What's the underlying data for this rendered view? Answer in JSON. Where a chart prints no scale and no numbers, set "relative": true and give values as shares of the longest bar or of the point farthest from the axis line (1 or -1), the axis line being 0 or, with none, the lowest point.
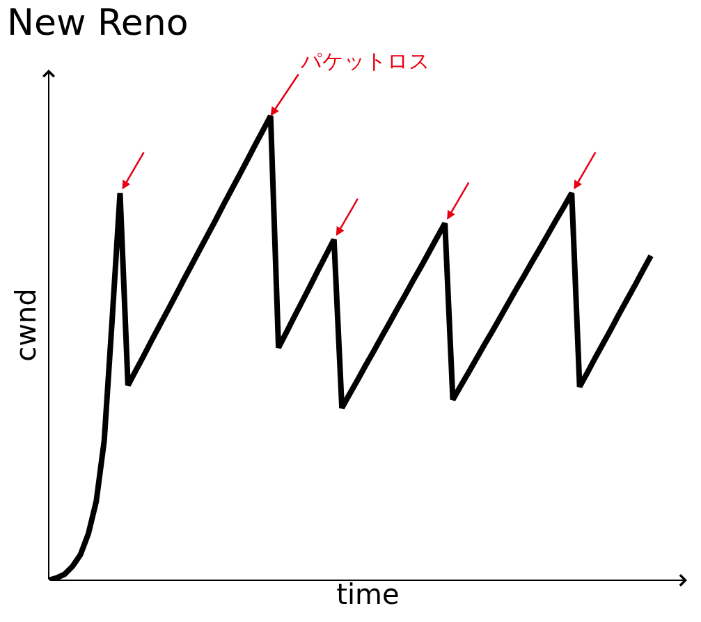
{
  "chart_data": {
    "type": "line",
    "title": "New Reno",
    "xlabel": "time",
    "ylabel": "cwnd",
    "relative": true,
    "color": "#000000",
    "marker": "none",
    "line_style": "solid",
    "categories": [
      null,
      null,
      null,
      null,
      null,
      null,
      null,
      null,
      null,
      null,
      null,
      null,
      null,
      null,
      null,
      null,
      null,
      null,
      null,
      null,
      null,
      null,
      null,
      null,
      null,
      null,
      null,
      null,
      null,
      null,
      null,
      null,
      null,
      null,
      null,
      null,
      null,
      null,
      null,
      null,
      null,
      null,
      null,
      null,
      null,
      null,
      null,
      null,
      null,
      null,
      null,
      null,
      null,
      null,
      null,
      null,
      null,
      null,
      null,
      null,
      null,
      null,
      null,
      null,
      null,
      null,
      null,
      null,
      null,
      null,
      null,
      null,
      null,
      null,
      null,
      null,
      null
    ],
    "values": [
      0,
      0.005,
      0.013,
      0.03,
      0.055,
      0.1,
      0.17,
      0.3,
      0.56,
      0.834,
      0.42,
      0.452,
      0.484,
      0.517,
      0.549,
      0.581,
      0.613,
      0.646,
      0.678,
      0.71,
      0.742,
      0.774,
      0.807,
      0.839,
      0.871,
      0.903,
      0.936,
      0.968,
      1.0,
      0.501,
      0.534,
      0.568,
      0.601,
      0.634,
      0.668,
      0.701,
      0.734,
      0.371,
      0.402,
      0.432,
      0.463,
      0.493,
      0.524,
      0.554,
      0.585,
      0.615,
      0.646,
      0.676,
      0.707,
      0.738,
      0.769,
      0.389,
      0.419,
      0.448,
      0.478,
      0.508,
      0.537,
      0.567,
      0.597,
      0.627,
      0.656,
      0.686,
      0.715,
      0.745,
      0.775,
      0.804,
      0.834,
      0.417,
      0.448,
      0.48,
      0.511,
      0.542,
      0.574,
      0.605,
      0.636,
      0.668,
      0.699
    ],
    "annotations": [
      "パケットロス"
    ]
  }
}
